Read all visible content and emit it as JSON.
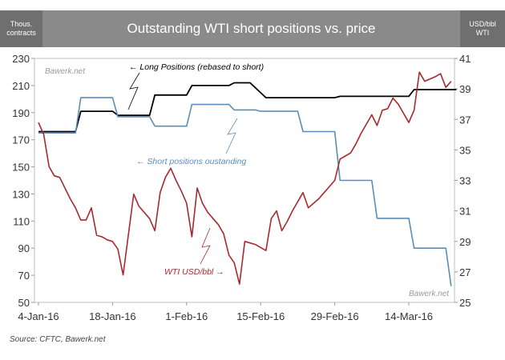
{
  "chart_data": {
    "type": "line",
    "title": "Outstanding WTI short positions vs. price",
    "left_axis_label": [
      "Thous.",
      "contracts"
    ],
    "right_axis_label": [
      "USD/bbl",
      "WTI"
    ],
    "left_ylim": [
      50,
      230
    ],
    "left_ticks": [
      "230",
      "210",
      "190",
      "170",
      "150",
      "130",
      "110",
      "90",
      "70",
      "50"
    ],
    "right_ylim": [
      25,
      41
    ],
    "right_ticks": [
      "41",
      "39",
      "37",
      "35",
      "33",
      "31",
      "29",
      "27",
      "25"
    ],
    "x_range_days": [
      0,
      76
    ],
    "x_ticks": [
      {
        "label": "4-Jan-16",
        "day": 0
      },
      {
        "label": "18-Jan-16",
        "day": 14
      },
      {
        "label": "1-Feb-16",
        "day": 28
      },
      {
        "label": "15-Feb-16",
        "day": 42
      },
      {
        "label": "29-Feb-16",
        "day": 56
      },
      {
        "label": "14-Mar-16",
        "day": 70
      }
    ],
    "watermark_top": "Bawerk.net",
    "watermark_bottom": "Bawerk.net",
    "series": [
      {
        "name": "Long Positions (rebased to short)",
        "axis": "left",
        "color": "#000000",
        "points": [
          [
            0,
            176
          ],
          [
            7,
            176
          ],
          [
            8,
            191
          ],
          [
            14,
            191
          ],
          [
            15,
            188
          ],
          [
            21,
            188
          ],
          [
            22,
            203
          ],
          [
            28,
            203
          ],
          [
            29,
            210
          ],
          [
            36,
            210
          ],
          [
            37,
            212
          ],
          [
            40,
            212
          ],
          [
            43,
            201
          ],
          [
            56,
            201
          ],
          [
            57,
            202
          ],
          [
            70,
            202
          ],
          [
            71,
            207
          ],
          [
            79,
            207
          ]
        ]
      },
      {
        "name": "Short positions oustanding",
        "axis": "left",
        "color": "#5b8db8",
        "points": [
          [
            0,
            175
          ],
          [
            7,
            175
          ],
          [
            8,
            201
          ],
          [
            14,
            201
          ],
          [
            15,
            187
          ],
          [
            21,
            187
          ],
          [
            22,
            180
          ],
          [
            28,
            180
          ],
          [
            29,
            196
          ],
          [
            36,
            196
          ],
          [
            37,
            192
          ],
          [
            41,
            192
          ],
          [
            42,
            191
          ],
          [
            49,
            191
          ],
          [
            50,
            176
          ],
          [
            56,
            176
          ],
          [
            57,
            140
          ],
          [
            63,
            140
          ],
          [
            64,
            112
          ],
          [
            70,
            112
          ],
          [
            71,
            90
          ],
          [
            77,
            90
          ],
          [
            78,
            62
          ]
        ]
      },
      {
        "name": "WTI USD/bbl",
        "axis": "right",
        "color": "#a8292e",
        "points": [
          [
            0,
            36.8
          ],
          [
            1,
            36.0
          ],
          [
            2,
            33.9
          ],
          [
            3,
            33.3
          ],
          [
            4,
            33.2
          ],
          [
            5,
            32.5
          ],
          [
            6,
            31.8
          ],
          [
            7,
            31.2
          ],
          [
            8,
            30.4
          ],
          [
            9,
            30.4
          ],
          [
            10,
            31.2
          ],
          [
            11,
            29.4
          ],
          [
            12,
            29.3
          ],
          [
            13,
            29.1
          ],
          [
            14,
            29.0
          ],
          [
            15,
            28.5
          ],
          [
            16,
            26.8
          ],
          [
            18,
            32.1
          ],
          [
            19,
            31.3
          ],
          [
            21,
            30.5
          ],
          [
            22,
            29.7
          ],
          [
            23,
            32.2
          ],
          [
            24,
            33.2
          ],
          [
            25,
            33.8
          ],
          [
            26,
            33.0
          ],
          [
            27,
            32.3
          ],
          [
            28,
            31.5
          ],
          [
            29,
            29.3
          ],
          [
            30,
            32.5
          ],
          [
            31,
            31.5
          ],
          [
            32,
            30.9
          ],
          [
            33,
            30.5
          ],
          [
            34,
            30.1
          ],
          [
            35,
            29.5
          ],
          [
            36,
            28.1
          ],
          [
            37,
            27.6
          ],
          [
            38,
            26.2
          ],
          [
            39,
            29.0
          ],
          [
            40,
            28.9
          ],
          [
            41,
            28.8
          ],
          [
            42,
            28.6
          ],
          [
            43,
            28.4
          ],
          [
            44,
            30.5
          ],
          [
            45,
            31.0
          ],
          [
            46,
            29.7
          ],
          [
            47,
            30.3
          ],
          [
            48,
            31.0
          ],
          [
            49,
            31.6
          ],
          [
            50,
            32.2
          ],
          [
            51,
            31.2
          ],
          [
            52,
            31.5
          ],
          [
            53,
            31.8
          ],
          [
            54,
            32.2
          ],
          [
            55,
            32.6
          ],
          [
            56,
            33.0
          ],
          [
            57,
            34.4
          ],
          [
            58,
            34.6
          ],
          [
            59,
            34.8
          ],
          [
            60,
            35.4
          ],
          [
            61,
            36.1
          ],
          [
            62,
            36.7
          ],
          [
            63,
            37.3
          ],
          [
            64,
            36.6
          ],
          [
            65,
            37.6
          ],
          [
            66,
            37.7
          ],
          [
            67,
            38.4
          ],
          [
            68,
            38.0
          ],
          [
            69,
            37.4
          ],
          [
            70,
            36.8
          ],
          [
            71,
            37.6
          ],
          [
            72,
            40.1
          ],
          [
            73,
            39.5
          ],
          [
            75,
            39.8
          ],
          [
            76,
            40.0
          ],
          [
            77,
            39.1
          ],
          [
            78,
            39.5
          ]
        ]
      }
    ],
    "annotations": [
      "← Long Positions (rebased to short)",
      "← Short positions oustanding",
      "WTI USD/bbl →"
    ],
    "source": "Source: CFTC, Bawerk.net"
  }
}
